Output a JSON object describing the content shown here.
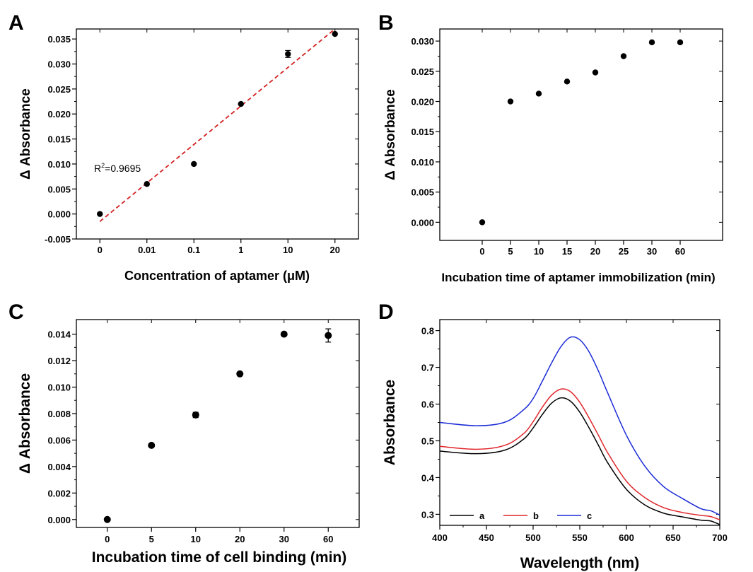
{
  "chart_data": [
    {
      "panel": "A",
      "type": "scatter",
      "xlabel": "Concentration of aptamer (μM)",
      "ylabel": "Δ Absorbance",
      "categories": [
        "0",
        "0.01",
        "0.1",
        "1",
        "10",
        "20"
      ],
      "values": [
        0.0,
        0.006,
        0.01,
        0.022,
        0.032,
        0.036
      ],
      "errors": [
        0.0,
        0.0,
        0.0,
        0.0,
        0.0007,
        0.0
      ],
      "ylim": [
        -0.005,
        0.037
      ],
      "yticks": [
        "-0.005",
        "0.000",
        "0.005",
        "0.010",
        "0.015",
        "0.020",
        "0.025",
        "0.030",
        "0.035"
      ],
      "fit": {
        "from": -0.0015,
        "to": 0.037,
        "color": "#d42020",
        "style": "dashed"
      },
      "annotation": {
        "base": "R",
        "sup": "2",
        "rest": "=0.9695"
      }
    },
    {
      "panel": "B",
      "type": "scatter",
      "xlabel": "Incubation time of aptamer immobilization (min)",
      "ylabel": "Δ Absorbance",
      "categories": [
        "0",
        "5",
        "10",
        "15",
        "20",
        "25",
        "30",
        "60"
      ],
      "values": [
        0.0,
        0.02,
        0.0213,
        0.0233,
        0.0248,
        0.0275,
        0.0298,
        0.0298
      ],
      "ylim": [
        -0.003,
        0.032
      ],
      "yticks": [
        "0.000",
        "0.005",
        "0.010",
        "0.015",
        "0.020",
        "0.025",
        "0.030"
      ]
    },
    {
      "panel": "C",
      "type": "scatter",
      "xlabel": "Incubation time of cell binding (min)",
      "ylabel": "Δ Absorbance",
      "categories": [
        "0",
        "5",
        "10",
        "20",
        "30",
        "60"
      ],
      "values": [
        0.0,
        0.0056,
        0.0079,
        0.011,
        0.014,
        0.0139
      ],
      "errors": [
        0.0,
        0.0,
        0.0002,
        0.0,
        0.0,
        0.0005
      ],
      "ylim": [
        -0.0006,
        0.0151
      ],
      "yticks": [
        "0.000",
        "0.002",
        "0.004",
        "0.006",
        "0.008",
        "0.010",
        "0.012",
        "0.014"
      ]
    },
    {
      "panel": "D",
      "type": "line",
      "xlabel": "Wavelength (nm)",
      "ylabel": "Absorbance",
      "xlim": [
        400,
        700
      ],
      "ylim": [
        0.27,
        0.83
      ],
      "xticks": [
        "400",
        "450",
        "500",
        "550",
        "600",
        "650",
        "700"
      ],
      "yticks": [
        "0.3",
        "0.4",
        "0.5",
        "0.6",
        "0.7",
        "0.8"
      ],
      "legend_position": "bottom",
      "x": [
        400,
        440,
        470,
        490,
        500,
        510,
        520,
        530,
        540,
        550,
        560,
        570,
        580,
        600,
        620,
        640,
        660,
        680,
        690,
        700
      ],
      "series": [
        {
          "name": "a",
          "color": "#000000",
          "values": [
            0.472,
            0.465,
            0.475,
            0.505,
            0.535,
            0.572,
            0.603,
            0.617,
            0.608,
            0.578,
            0.535,
            0.488,
            0.44,
            0.368,
            0.325,
            0.303,
            0.293,
            0.284,
            0.282,
            0.272
          ]
        },
        {
          "name": "b",
          "color": "#e0262b",
          "values": [
            0.485,
            0.477,
            0.488,
            0.52,
            0.552,
            0.592,
            0.625,
            0.641,
            0.634,
            0.605,
            0.562,
            0.515,
            0.467,
            0.39,
            0.345,
            0.318,
            0.305,
            0.297,
            0.294,
            0.285
          ]
        },
        {
          "name": "c",
          "color": "#1a2bd6",
          "values": [
            0.55,
            0.541,
            0.551,
            0.585,
            0.615,
            0.663,
            0.713,
            0.757,
            0.782,
            0.775,
            0.742,
            0.69,
            0.63,
            0.515,
            0.43,
            0.375,
            0.343,
            0.315,
            0.31,
            0.298
          ]
        }
      ]
    }
  ]
}
